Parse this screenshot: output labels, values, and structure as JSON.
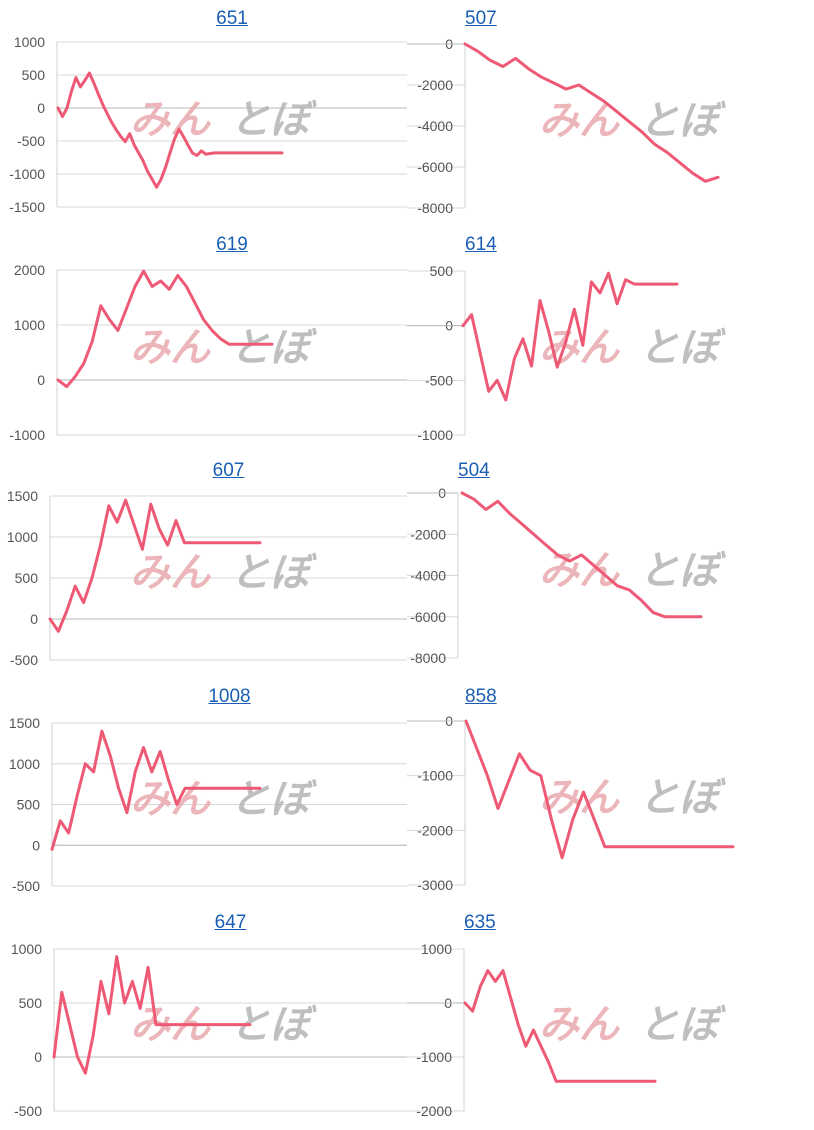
{
  "colors": {
    "line": "#ee5a75",
    "grid": "#d8d8d8",
    "tick_text": "#555555",
    "title_link": "#1a5fb4",
    "watermark_pink": "#e8a9ae",
    "watermark_gray": "#b4b4b4"
  },
  "watermark": {
    "part1": "みん",
    "part2": "とぼ"
  },
  "chart_data": [
    {
      "type": "line",
      "title": "651",
      "yticks": [
        1000,
        500,
        0,
        -500,
        -1000,
        -1500
      ],
      "ylim": [
        -1500,
        1000
      ],
      "x": [
        0,
        2,
        4,
        6,
        8,
        10,
        12,
        14,
        16,
        18,
        20,
        22,
        24,
        26,
        28,
        30,
        32,
        34,
        36,
        38,
        40,
        42,
        44,
        46,
        48,
        50,
        52,
        54,
        56,
        58,
        60,
        62,
        64,
        66,
        68,
        70,
        72,
        74,
        76,
        78,
        80,
        82,
        84,
        86,
        88,
        90,
        92,
        94,
        96,
        98,
        100
      ],
      "values": [
        0,
        -130,
        0,
        250,
        460,
        320,
        420,
        530,
        380,
        210,
        50,
        -90,
        -220,
        -330,
        -430,
        -510,
        -390,
        -560,
        -680,
        -800,
        -960,
        -1080,
        -1200,
        -1080,
        -900,
        -680,
        -470,
        -320,
        -430,
        -560,
        -680,
        -720,
        -650,
        -700,
        -690,
        -680,
        -680,
        -680,
        -680,
        -680,
        -680,
        -680,
        -680,
        -680,
        -680,
        -680,
        -680,
        -680,
        -680,
        -680,
        -680
      ]
    },
    {
      "type": "line",
      "title": "507",
      "yticks": [
        0,
        -2000,
        -4000,
        -6000,
        -8000
      ],
      "ylim": [
        -8000,
        0
      ],
      "x": [
        0,
        5,
        10,
        15,
        20,
        25,
        30,
        35,
        40,
        45,
        50,
        55,
        60,
        65,
        70,
        75,
        80,
        85,
        90,
        95,
        100
      ],
      "values": [
        0,
        -350,
        -800,
        -1100,
        -700,
        -1200,
        -1600,
        -1900,
        -2200,
        -2000,
        -2400,
        -2800,
        -3300,
        -3800,
        -4300,
        -4900,
        -5300,
        -5800,
        -6300,
        -6700,
        -6500
      ]
    },
    {
      "type": "line",
      "title": "619",
      "yticks": [
        2000,
        1000,
        0,
        -1000
      ],
      "ylim": [
        -1000,
        2000
      ],
      "x": [
        0,
        4,
        8,
        12,
        16,
        20,
        24,
        28,
        32,
        36,
        40,
        44,
        48,
        52,
        56,
        60,
        64,
        68,
        72,
        76,
        80,
        84,
        88,
        92,
        96,
        100
      ],
      "values": [
        0,
        -120,
        60,
        300,
        700,
        1350,
        1100,
        900,
        1300,
        1700,
        1980,
        1700,
        1800,
        1650,
        1900,
        1700,
        1400,
        1100,
        900,
        750,
        650,
        650,
        650,
        650,
        650,
        650
      ]
    },
    {
      "type": "line",
      "title": "614",
      "yticks": [
        500,
        0,
        -500,
        -1000
      ],
      "ylim": [
        -1000,
        500
      ],
      "x": [
        0,
        4,
        8,
        12,
        16,
        20,
        24,
        28,
        32,
        36,
        40,
        44,
        48,
        52,
        56,
        60,
        64,
        68,
        72,
        76,
        80,
        84,
        88,
        92,
        96,
        100
      ],
      "values": [
        0,
        100,
        -250,
        -600,
        -500,
        -680,
        -300,
        -120,
        -370,
        230,
        -50,
        -380,
        -150,
        150,
        -180,
        400,
        300,
        480,
        200,
        420,
        380,
        380,
        380,
        380,
        380,
        380
      ]
    },
    {
      "type": "line",
      "title": "607",
      "yticks": [
        1500,
        1000,
        500,
        0,
        -500
      ],
      "ylim": [
        -500,
        1500
      ],
      "x": [
        0,
        4,
        8,
        12,
        16,
        20,
        24,
        28,
        32,
        36,
        40,
        44,
        48,
        52,
        56,
        60,
        64,
        68,
        72,
        76,
        80,
        84,
        88,
        92,
        96,
        100
      ],
      "values": [
        0,
        -150,
        100,
        400,
        200,
        500,
        900,
        1380,
        1180,
        1450,
        1150,
        850,
        1400,
        1100,
        900,
        1200,
        930,
        930,
        930,
        930,
        930,
        930,
        930,
        930,
        930,
        930
      ]
    },
    {
      "type": "line",
      "title": "504",
      "yticks": [
        0,
        -2000,
        -4000,
        -6000,
        -8000
      ],
      "ylim": [
        -8000,
        0
      ],
      "x": [
        0,
        5,
        10,
        15,
        20,
        25,
        30,
        35,
        40,
        45,
        50,
        55,
        60,
        65,
        70,
        75,
        80,
        85,
        90,
        95,
        100
      ],
      "values": [
        0,
        -300,
        -800,
        -400,
        -1000,
        -1500,
        -2000,
        -2500,
        -3000,
        -3300,
        -3000,
        -3500,
        -4000,
        -4500,
        -4700,
        -5200,
        -5800,
        -6000,
        -6000,
        -6000,
        -6000
      ]
    },
    {
      "type": "line",
      "title": "1008",
      "yticks": [
        1500,
        1000,
        500,
        0,
        -500
      ],
      "ylim": [
        -500,
        1500
      ],
      "x": [
        0,
        4,
        8,
        12,
        16,
        20,
        24,
        28,
        32,
        36,
        40,
        44,
        48,
        52,
        56,
        60,
        64,
        68,
        72,
        76,
        80,
        84,
        88,
        92,
        96,
        100
      ],
      "values": [
        -50,
        300,
        150,
        600,
        1000,
        900,
        1400,
        1100,
        700,
        400,
        900,
        1200,
        900,
        1150,
        800,
        500,
        700,
        700,
        700,
        700,
        700,
        700,
        700,
        700,
        700,
        700
      ]
    },
    {
      "type": "line",
      "title": "858",
      "yticks": [
        0,
        -1000,
        -2000,
        -3000
      ],
      "ylim": [
        -3000,
        0
      ],
      "x": [
        0,
        4,
        8,
        12,
        16,
        20,
        24,
        28,
        32,
        36,
        40,
        44,
        48,
        52,
        56,
        60,
        64,
        68,
        72,
        76,
        80,
        84,
        88,
        92,
        96,
        100
      ],
      "values": [
        0,
        -500,
        -1000,
        -1600,
        -1100,
        -600,
        -900,
        -1000,
        -1800,
        -2500,
        -1800,
        -1300,
        -1800,
        -2300,
        -2300,
        -2300,
        -2300,
        -2300,
        -2300,
        -2300,
        -2300,
        -2300,
        -2300,
        -2300,
        -2300,
        -2300
      ]
    },
    {
      "type": "line",
      "title": "647",
      "yticks": [
        1000,
        500,
        0,
        -500
      ],
      "ylim": [
        -500,
        1000
      ],
      "x": [
        0,
        4,
        8,
        12,
        16,
        20,
        24,
        28,
        32,
        36,
        40,
        44,
        48,
        52,
        56,
        60,
        64,
        68,
        72,
        76,
        80,
        84,
        88,
        92,
        96,
        100
      ],
      "values": [
        0,
        600,
        300,
        0,
        -150,
        200,
        700,
        400,
        930,
        500,
        700,
        450,
        830,
        300,
        300,
        300,
        300,
        300,
        300,
        300,
        300,
        300,
        300,
        300,
        300,
        300
      ]
    },
    {
      "type": "line",
      "title": "635",
      "yticks": [
        1000,
        0,
        -1000,
        -2000
      ],
      "ylim": [
        -2000,
        1000
      ],
      "x": [
        0,
        4,
        8,
        12,
        16,
        20,
        24,
        28,
        32,
        36,
        40,
        44,
        48,
        52,
        56,
        60,
        64,
        68,
        72,
        76,
        80,
        84,
        88,
        92,
        96,
        100
      ],
      "values": [
        0,
        -150,
        300,
        600,
        400,
        600,
        100,
        -400,
        -800,
        -500,
        -800,
        -1100,
        -1450,
        -1450,
        -1450,
        -1450,
        -1450,
        -1450,
        -1450,
        -1450,
        -1450,
        -1450,
        -1450,
        -1450,
        -1450,
        -1450
      ]
    }
  ]
}
